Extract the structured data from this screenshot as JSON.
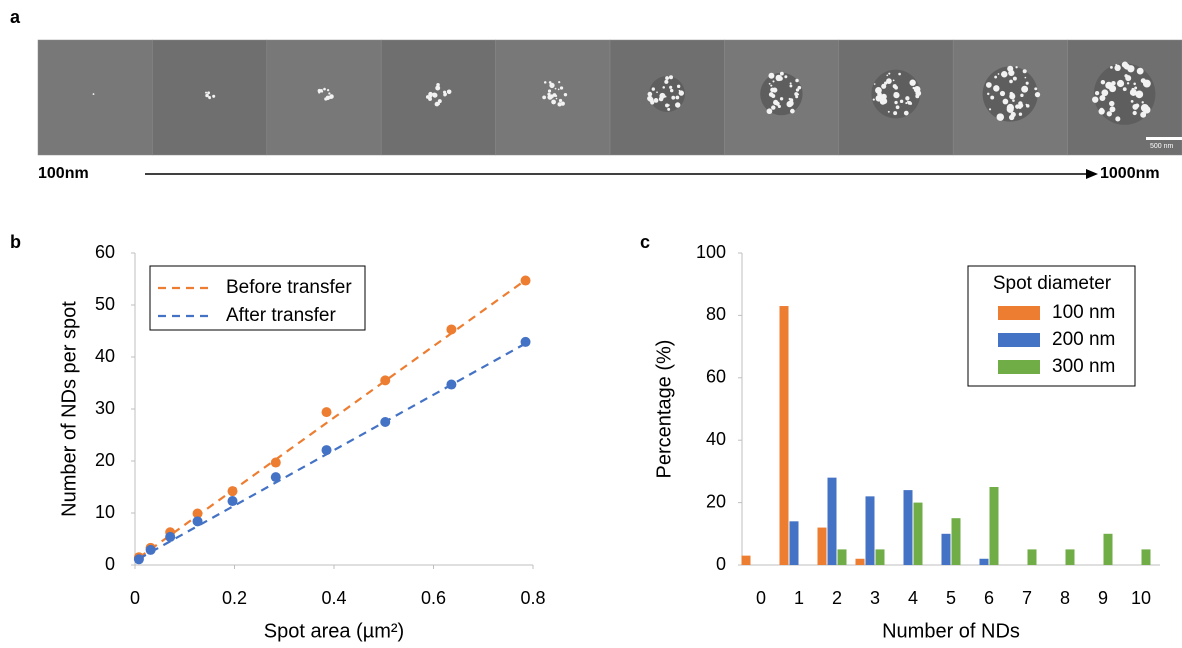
{
  "panel_labels": [
    "a",
    "b",
    "c"
  ],
  "image_strip": {
    "start_label": "100nm",
    "end_label": "1000nm",
    "scale_bar": "500 nm"
  },
  "chart_data": [
    {
      "type": "scatter",
      "x_label": "Spot area (µm²)",
      "y_label": "Number of NDs per spot",
      "x": [
        0.00785,
        0.0314,
        0.0707,
        0.1257,
        0.196,
        0.283,
        0.385,
        0.503,
        0.636,
        0.785
      ],
      "series": [
        {
          "name": "Before transfer",
          "color": "#ed7d31",
          "values": [
            1.5,
            3.3,
            6.3,
            9.9,
            14.2,
            19.7,
            29.4,
            35.5,
            45.3,
            54.7
          ],
          "fit": {
            "x": [
              0.00785,
              0.785
            ],
            "y": [
              1.4,
              54.8
            ]
          }
        },
        {
          "name": "After transfer",
          "color": "#4472c4",
          "values": [
            1.1,
            2.9,
            5.4,
            8.4,
            12.3,
            16.9,
            22.1,
            27.5,
            34.7,
            42.9
          ],
          "fit": {
            "x": [
              0.00785,
              0.785
            ],
            "y": [
              1.2,
              42.6
            ]
          }
        }
      ],
      "xlim": [
        0,
        0.8
      ],
      "xticks": [
        0,
        0.2,
        0.4,
        0.6,
        0.8
      ],
      "ylim": [
        0,
        60
      ],
      "yticks": [
        0,
        10,
        20,
        30,
        40,
        50,
        60
      ]
    },
    {
      "type": "bar",
      "x_label": "Number of NDs",
      "y_label": "Percentage (%)",
      "legend_title": "Spot diameter",
      "categories": [
        "0",
        "1",
        "2",
        "3",
        "4",
        "5",
        "6",
        "7",
        "8",
        "9",
        "10"
      ],
      "series": [
        {
          "name": "100 nm",
          "color": "#ed7d31",
          "values": [
            3,
            83,
            12,
            2,
            0,
            0,
            0,
            0,
            0,
            0,
            0
          ]
        },
        {
          "name": "200 nm",
          "color": "#4472c4",
          "values": [
            0,
            14,
            28,
            22,
            24,
            10,
            2,
            0,
            0,
            0,
            0
          ]
        },
        {
          "name": "300 nm",
          "color": "#70ad47",
          "values": [
            0,
            0,
            5,
            5,
            20,
            15,
            25,
            5,
            5,
            10,
            5
          ]
        }
      ],
      "ylim": [
        0,
        100
      ],
      "yticks": [
        0,
        20,
        40,
        60,
        80,
        100
      ]
    }
  ]
}
